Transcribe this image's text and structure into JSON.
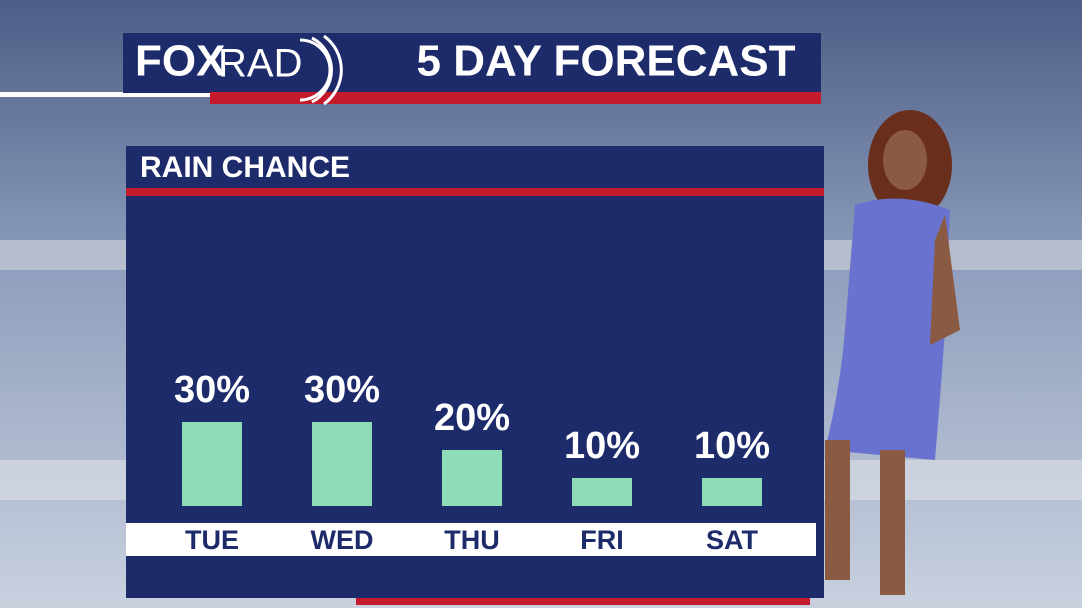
{
  "logo": {
    "fox": "FOX",
    "rad": "RAD"
  },
  "chart_data": {
    "type": "bar",
    "title": "5 DAY FORECAST",
    "subtitle": "RAIN CHANCE",
    "categories": [
      "TUE",
      "WED",
      "THU",
      "FRI",
      "SAT"
    ],
    "values": [
      30,
      30,
      20,
      10,
      10
    ],
    "value_labels": [
      "30%",
      "30%",
      "20%",
      "10%",
      "10%"
    ],
    "color": "#8fdcb8"
  }
}
